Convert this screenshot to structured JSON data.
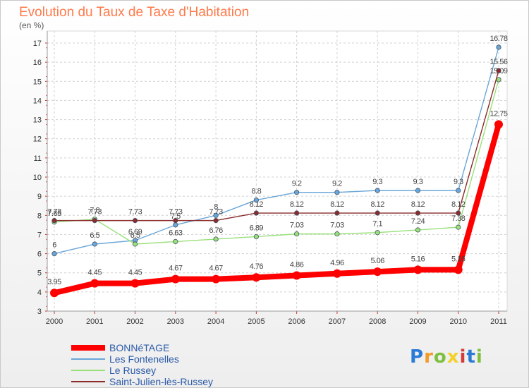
{
  "title": "Evolution du Taux de Taxe d'Habitation",
  "unit": "(en %)",
  "logo": "Proxiti",
  "logo_colors": [
    "#2b7bd6",
    "#f39a2b",
    "#7fbf3f",
    "#f3d12b",
    "#d63b3b",
    "#2b7bd6",
    "#7fbf3f"
  ],
  "chart_data": {
    "type": "line",
    "title": "Evolution du Taux de Taxe d'Habitation",
    "ylabel": "(en %)",
    "xlabel": "",
    "x": [
      "2000",
      "2001",
      "2002",
      "2003",
      "2004",
      "2005",
      "2006",
      "2007",
      "2008",
      "2009",
      "2010",
      "2011"
    ],
    "ylim": [
      3,
      17
    ],
    "yticks": [
      3,
      4,
      5,
      6,
      7,
      8,
      9,
      10,
      11,
      12,
      13,
      14,
      15,
      16,
      17
    ],
    "grid": true,
    "legend": "bottom-left",
    "series": [
      {
        "name": "BONNéTAGE",
        "color": "#ff0000",
        "values": [
          3.95,
          4.45,
          4.45,
          4.67,
          4.67,
          4.76,
          4.86,
          4.96,
          5.06,
          5.16,
          5.16,
          12.75
        ],
        "labels": [
          "3.95",
          "4.45",
          "4.45",
          "4.67",
          "4.67",
          "4.76",
          "4.86",
          "4.96",
          "5.06",
          "5.16",
          "5.16",
          "12.75"
        ]
      },
      {
        "name": "Les Fontenelles",
        "color": "#6aa6d8",
        "values": [
          6,
          6.5,
          6.69,
          7.5,
          8,
          8.8,
          9.2,
          9.2,
          9.3,
          9.3,
          9.3,
          16.78
        ],
        "labels": [
          "6",
          "6.5",
          "6.69",
          "7.5",
          "8",
          "8.8",
          "9.2",
          "9.2",
          "9.3",
          "9.3",
          "9.3",
          "16.78"
        ]
      },
      {
        "name": "Le Russey",
        "color": "#99e07a",
        "values": [
          7.65,
          7.8,
          6.5,
          6.63,
          6.76,
          6.89,
          7.03,
          7.03,
          7.1,
          7.24,
          7.38,
          15.09
        ],
        "labels": [
          "7.65",
          "7.8",
          "6.5",
          "6.63",
          "6.76",
          "6.89",
          "7.03",
          "7.03",
          "7.1",
          "7.24",
          "7.38",
          "15.09"
        ]
      },
      {
        "name": "Saint-Julien-lès-Russey",
        "color": "#8b2b2b",
        "values": [
          7.73,
          7.73,
          7.73,
          7.73,
          7.73,
          8.12,
          8.12,
          8.12,
          8.12,
          8.12,
          8.12,
          15.56
        ],
        "labels": [
          "7.73",
          "7.73",
          "7.73",
          "7.73",
          "7.73",
          "8.12",
          "8.12",
          "8.12",
          "8.12",
          "8.12",
          "8.12",
          "15.56"
        ]
      }
    ]
  }
}
